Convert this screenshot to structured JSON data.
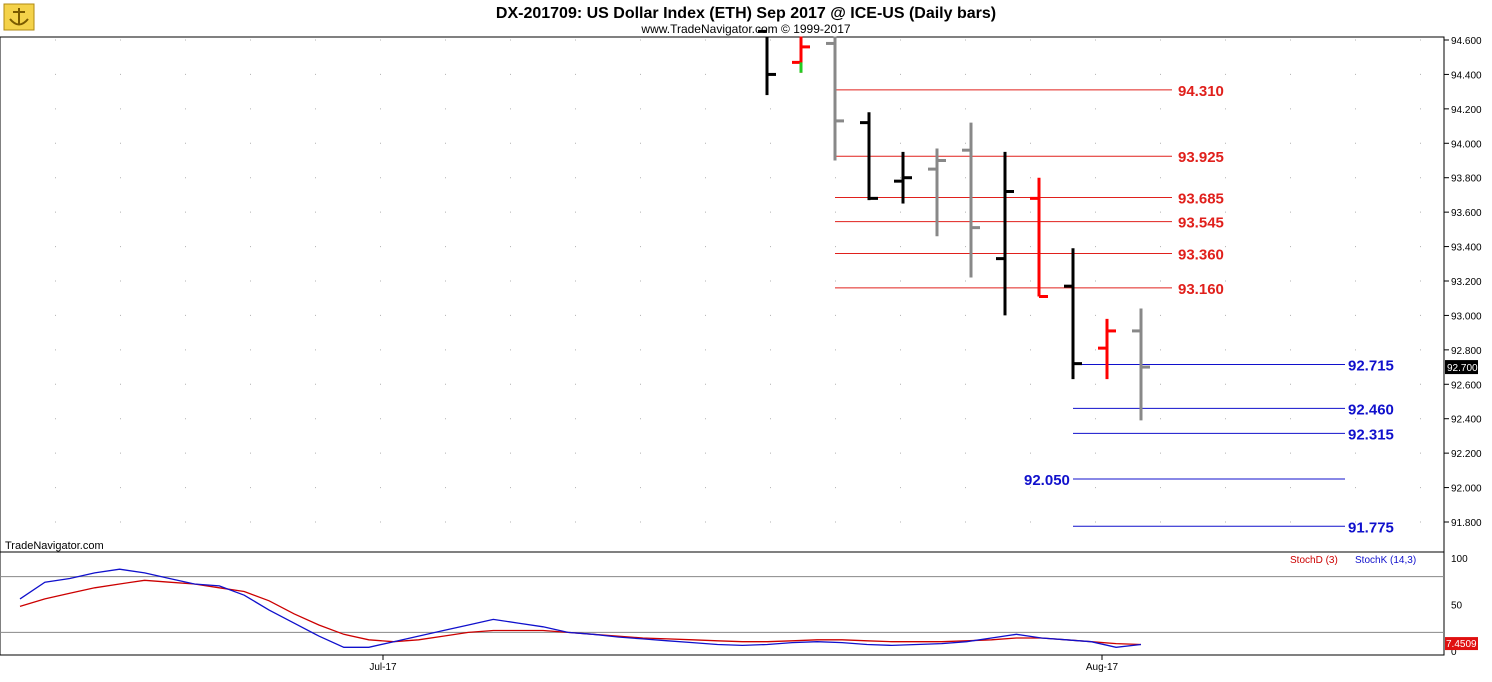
{
  "header": {
    "title": "DX-201709:  US Dollar Index (ETH) Sep 2017 @ ICE-US  (Daily bars)",
    "subtitle": "www.TradeNavigator.com © 1999-2017"
  },
  "watermark": "TradeNavigator.com",
  "logo_icon": "anchor-icon",
  "colors": {
    "up": "#ff0000",
    "down_black": "#000000",
    "down_gray": "#888888",
    "green": "#22cc22",
    "red_level": "#e0201c",
    "blue_level": "#1010cc",
    "stochD": "#cc0000",
    "stochK": "#1010cc"
  },
  "price_axis": {
    "min": 91.6,
    "max": 94.65,
    "ticks": [
      "94.600",
      "94.400",
      "94.200",
      "94.000",
      "93.800",
      "93.600",
      "93.400",
      "93.200",
      "93.000",
      "92.800",
      "92.600",
      "92.400",
      "92.200",
      "92.000",
      "91.800"
    ],
    "current_price": "92.700"
  },
  "date_axis": {
    "labels": [
      "Jul-17",
      "Aug-17"
    ]
  },
  "chart_data": {
    "type": "bar",
    "title": "DX-201709:  US Dollar Index (ETH) Sep 2017 @ ICE-US  (Daily bars)",
    "bars": [
      {
        "o": 94.65,
        "h": 94.65,
        "l": 94.28,
        "c": 94.4,
        "color": "black"
      },
      {
        "o": 94.47,
        "h": 94.65,
        "l": 94.41,
        "c": 94.56,
        "color": "red"
      },
      {
        "o": 94.58,
        "h": 94.65,
        "l": 93.9,
        "c": 94.13,
        "color": "gray"
      },
      {
        "o": 94.12,
        "h": 94.18,
        "l": 93.67,
        "c": 93.68,
        "color": "black"
      },
      {
        "o": 93.78,
        "h": 93.95,
        "l": 93.65,
        "c": 93.8,
        "color": "black"
      },
      {
        "o": 93.85,
        "h": 93.97,
        "l": 93.46,
        "c": 93.9,
        "color": "gray"
      },
      {
        "o": 93.96,
        "h": 94.12,
        "l": 93.22,
        "c": 93.51,
        "color": "gray"
      },
      {
        "o": 93.33,
        "h": 93.95,
        "l": 93.0,
        "c": 93.72,
        "color": "black"
      },
      {
        "o": 93.68,
        "h": 93.8,
        "l": 93.11,
        "c": 93.11,
        "color": "red"
      },
      {
        "o": 93.17,
        "h": 93.39,
        "l": 92.63,
        "c": 92.72,
        "color": "black"
      },
      {
        "o": 92.81,
        "h": 92.98,
        "l": 92.63,
        "c": 92.91,
        "color": "red"
      },
      {
        "o": 92.91,
        "h": 93.04,
        "l": 92.39,
        "c": 92.7,
        "color": "gray"
      }
    ],
    "levels_red": [
      {
        "value": 94.31,
        "label": "94.310"
      },
      {
        "value": 93.925,
        "label": "93.925"
      },
      {
        "value": 93.685,
        "label": "93.685"
      },
      {
        "value": 93.545,
        "label": "93.545"
      },
      {
        "value": 93.36,
        "label": "93.360"
      },
      {
        "value": 93.16,
        "label": "93.160"
      }
    ],
    "levels_blue": [
      {
        "value": 92.715,
        "label": "92.715",
        "label_side": "right"
      },
      {
        "value": 92.46,
        "label": "92.460",
        "label_side": "right"
      },
      {
        "value": 92.315,
        "label": "92.315",
        "label_side": "right"
      },
      {
        "value": 92.05,
        "label": "92.050",
        "label_side": "left"
      },
      {
        "value": 91.775,
        "label": "91.775",
        "label_side": "right"
      }
    ]
  },
  "stochastic": {
    "ticks": [
      "100",
      "50",
      "0"
    ],
    "legend_d": "StochD (3)",
    "legend_k": "StochK (14,3)",
    "current_value": "7.4509",
    "ref_levels": [
      80,
      20
    ],
    "stochD": [
      48,
      56,
      62,
      68,
      72,
      76,
      74,
      72,
      68,
      64,
      54,
      40,
      28,
      18,
      12,
      10,
      12,
      16,
      20,
      22,
      22,
      22,
      20,
      18,
      16,
      14,
      13,
      12,
      11,
      10,
      10,
      11,
      12,
      12,
      11,
      10,
      10,
      10,
      11,
      12,
      14,
      14,
      12,
      10,
      8,
      7
    ],
    "stochK": [
      56,
      74,
      78,
      84,
      88,
      84,
      78,
      72,
      70,
      60,
      44,
      30,
      16,
      4,
      4,
      10,
      16,
      22,
      28,
      34,
      30,
      26,
      20,
      18,
      15,
      13,
      11,
      9,
      7,
      6,
      7,
      9,
      10,
      9,
      7,
      6,
      7,
      8,
      10,
      14,
      18,
      14,
      12,
      10,
      4,
      7
    ]
  }
}
